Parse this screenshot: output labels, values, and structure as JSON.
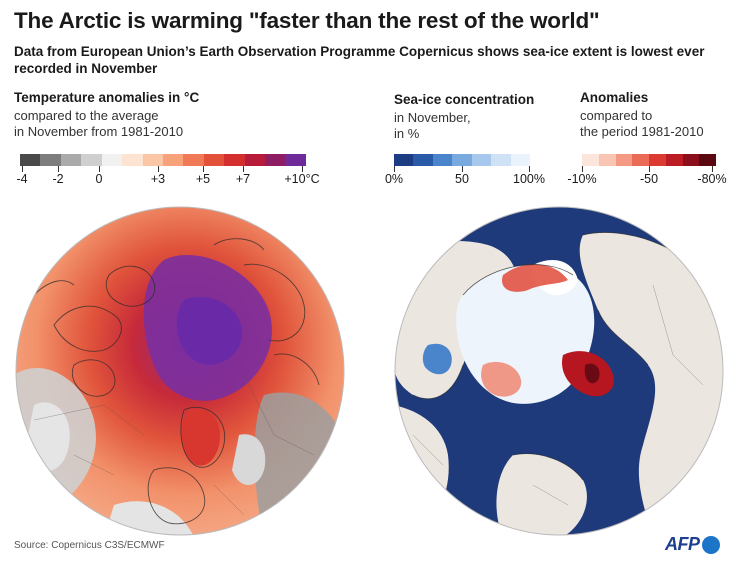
{
  "header": {
    "title": "The Arctic is warming \"faster than the rest of the world\"",
    "subtitle": "Data from European Union’s Earth Observation Programme Copernicus shows sea-ice extent is lowest ever recorded in November"
  },
  "temperature_legend": {
    "title": "Temperature anomalies in °C",
    "subtitle_line1": "compared to the average",
    "subtitle_line2": "in November from 1981-2010",
    "colors": [
      "#4a4a4a",
      "#7d7d7d",
      "#aaaaaa",
      "#cfcfcf",
      "#f1f1f1",
      "#fde3d2",
      "#fbc6a6",
      "#f7a27a",
      "#f07a55",
      "#e3513a",
      "#d32f2f",
      "#b71c3a",
      "#8e1d63",
      "#6f2a9a"
    ],
    "ticks": [
      "-4",
      "-2",
      "0",
      "+3",
      "+5",
      "+7",
      "+10°C"
    ]
  },
  "ice_legend": {
    "title": "Sea-ice concentration",
    "subtitle_line1": "in November,",
    "subtitle_line2": "in %",
    "colors": [
      "#1e3c84",
      "#2a5aa8",
      "#4a85cc",
      "#78aadf",
      "#a5c8ec",
      "#cfe1f4",
      "#eaf3fb"
    ],
    "ticks": [
      "0%",
      "50",
      "100%"
    ]
  },
  "anomaly_legend": {
    "title": "Anomalies",
    "subtitle_line1": "compared to",
    "subtitle_line2": "the period 1981-2010",
    "colors": [
      "#fce6dc",
      "#f9c5b3",
      "#f49a82",
      "#ec6b56",
      "#dc3b33",
      "#bc1c24",
      "#8a0f1a",
      "#5a0810"
    ],
    "ticks": [
      "-10%",
      "-50",
      "-80%"
    ]
  },
  "footer": {
    "source": "Source: Copernicus C3S/ECMWF",
    "logo": "AFP"
  }
}
